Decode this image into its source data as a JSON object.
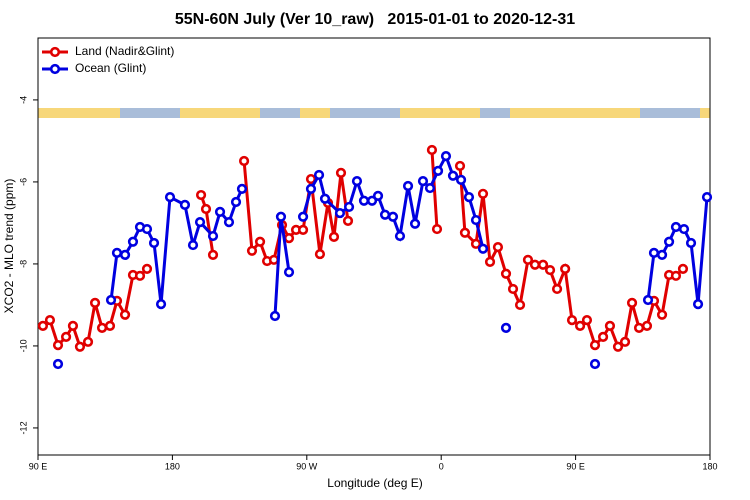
{
  "chart_data": {
    "type": "line",
    "title": "55N-60N July (Ver 10_raw)   2015-01-01 to 2020-12-31",
    "xlabel": "Longitude (deg E)",
    "ylabel": "XCO2 - MLO trend (ppm)",
    "xlim": [
      90,
      540
    ],
    "xticks": [
      {
        "value": 90,
        "label": "90 E"
      },
      180,
      {
        "value": 270,
        "label": "90 W"
      },
      {
        "value": 360,
        "label": "0"
      },
      {
        "value": 450,
        "label": "90 E"
      },
      {
        "value": 540,
        "label": "180"
      }
    ],
    "ylim": [
      -12.66,
      -2.49
    ],
    "yticks": [
      -4,
      -6,
      -8,
      -10,
      -12
    ],
    "legend": "upper left",
    "series": [
      {
        "name": "Land (Nadir&Glint)",
        "color": "#e00000",
        "x": [
          93.3,
          98.0,
          103.4,
          108.8,
          113.4,
          118.1,
          123.5,
          128.2,
          132.9,
          138.2,
          142.9,
          148.3,
          153.6,
          158.3,
          163.0,
          null,
          199.2,
          202.5,
          207.2,
          null,
          228.0,
          233.3,
          238.7,
          243.4,
          248.0,
          253.4,
          258.1,
          262.8,
          267.5,
          272.8,
          278.8,
          284.2,
          288.2,
          292.9,
          297.6,
          null,
          353.8,
          357.2,
          null,
          372.6,
          375.9,
          383.3,
          388.0,
          392.7,
          398.0,
          403.4,
          408.1,
          412.8,
          418.1,
          422.8,
          428.2,
          432.9,
          437.6,
          443.0,
          447.6,
          453.0,
          457.6,
          463.0,
          468.4,
          473.0,
          478.4,
          483.1,
          487.8,
          492.5,
          497.8,
          502.5,
          507.9,
          512.6,
          517.2,
          521.9
        ],
        "values": [
          -9.51,
          -9.37,
          -9.98,
          -9.78,
          -9.51,
          -10.02,
          -9.9,
          -8.95,
          -9.56,
          -9.51,
          -8.9,
          -9.24,
          -8.27,
          -8.29,
          -8.12,
          null,
          -6.32,
          -6.66,
          -7.78,
          null,
          -5.49,
          -7.68,
          -7.46,
          -7.93,
          -7.9,
          -7.05,
          -7.37,
          -7.17,
          -7.17,
          -5.93,
          -7.76,
          -6.51,
          -7.34,
          -5.78,
          -6.95,
          null,
          -5.22,
          -7.15,
          null,
          -5.61,
          -7.24,
          -7.51,
          -6.29,
          -7.95,
          -7.59,
          -8.24,
          -8.61,
          -9.0,
          -7.9,
          -8.02,
          -8.02,
          -8.15,
          -8.61,
          -8.12,
          -9.37,
          -9.51,
          -9.37,
          -9.98,
          -9.78,
          -9.51,
          -10.02,
          -9.9,
          -8.95,
          -9.56,
          -9.51,
          -8.9,
          -9.24,
          -8.27,
          -8.29,
          -8.12
        ]
      },
      {
        "name": "Ocean (Glint)",
        "color": "#0000e0",
        "x": [
          103.4,
          null,
          138.9,
          142.9,
          148.3,
          153.6,
          158.3,
          163.0,
          167.7,
          172.4,
          178.4,
          188.4,
          193.8,
          198.5,
          207.2,
          211.9,
          217.9,
          222.6,
          226.6,
          null,
          248.7,
          252.7,
          258.1,
          null,
          267.5,
          272.8,
          278.2,
          282.2,
          292.2,
          298.3,
          303.6,
          308.3,
          313.7,
          317.7,
          322.4,
          327.7,
          332.4,
          337.8,
          342.5,
          347.8,
          352.5,
          357.9,
          363.2,
          367.9,
          373.3,
          378.6,
          383.3,
          388.0,
          null,
          403.4,
          null,
          463.0,
          null,
          498.5,
          502.5,
          507.9,
          512.6,
          517.2,
          522.6,
          527.3,
          532.0,
          538.0
        ],
        "values": [
          -10.44,
          null,
          -8.88,
          -7.73,
          -7.78,
          -7.46,
          -7.1,
          -7.15,
          -7.49,
          -8.98,
          -6.37,
          -6.56,
          -7.54,
          -6.98,
          -7.32,
          -6.73,
          -6.98,
          -6.49,
          -6.17,
          null,
          -9.27,
          -6.85,
          -8.2,
          null,
          -6.85,
          -6.17,
          -5.83,
          -6.41,
          -6.76,
          -6.61,
          -5.98,
          -6.46,
          -6.46,
          -6.34,
          -6.8,
          -6.85,
          -7.32,
          -6.1,
          -7.02,
          -5.98,
          -6.15,
          -5.73,
          -5.37,
          -5.85,
          -5.95,
          -6.37,
          -6.93,
          -7.63,
          null,
          -9.56,
          null,
          -10.44,
          null,
          -8.88,
          -7.73,
          -7.78,
          -7.46,
          -7.1,
          -7.15,
          -7.49,
          -8.98,
          -6.37
        ]
      }
    ]
  }
}
